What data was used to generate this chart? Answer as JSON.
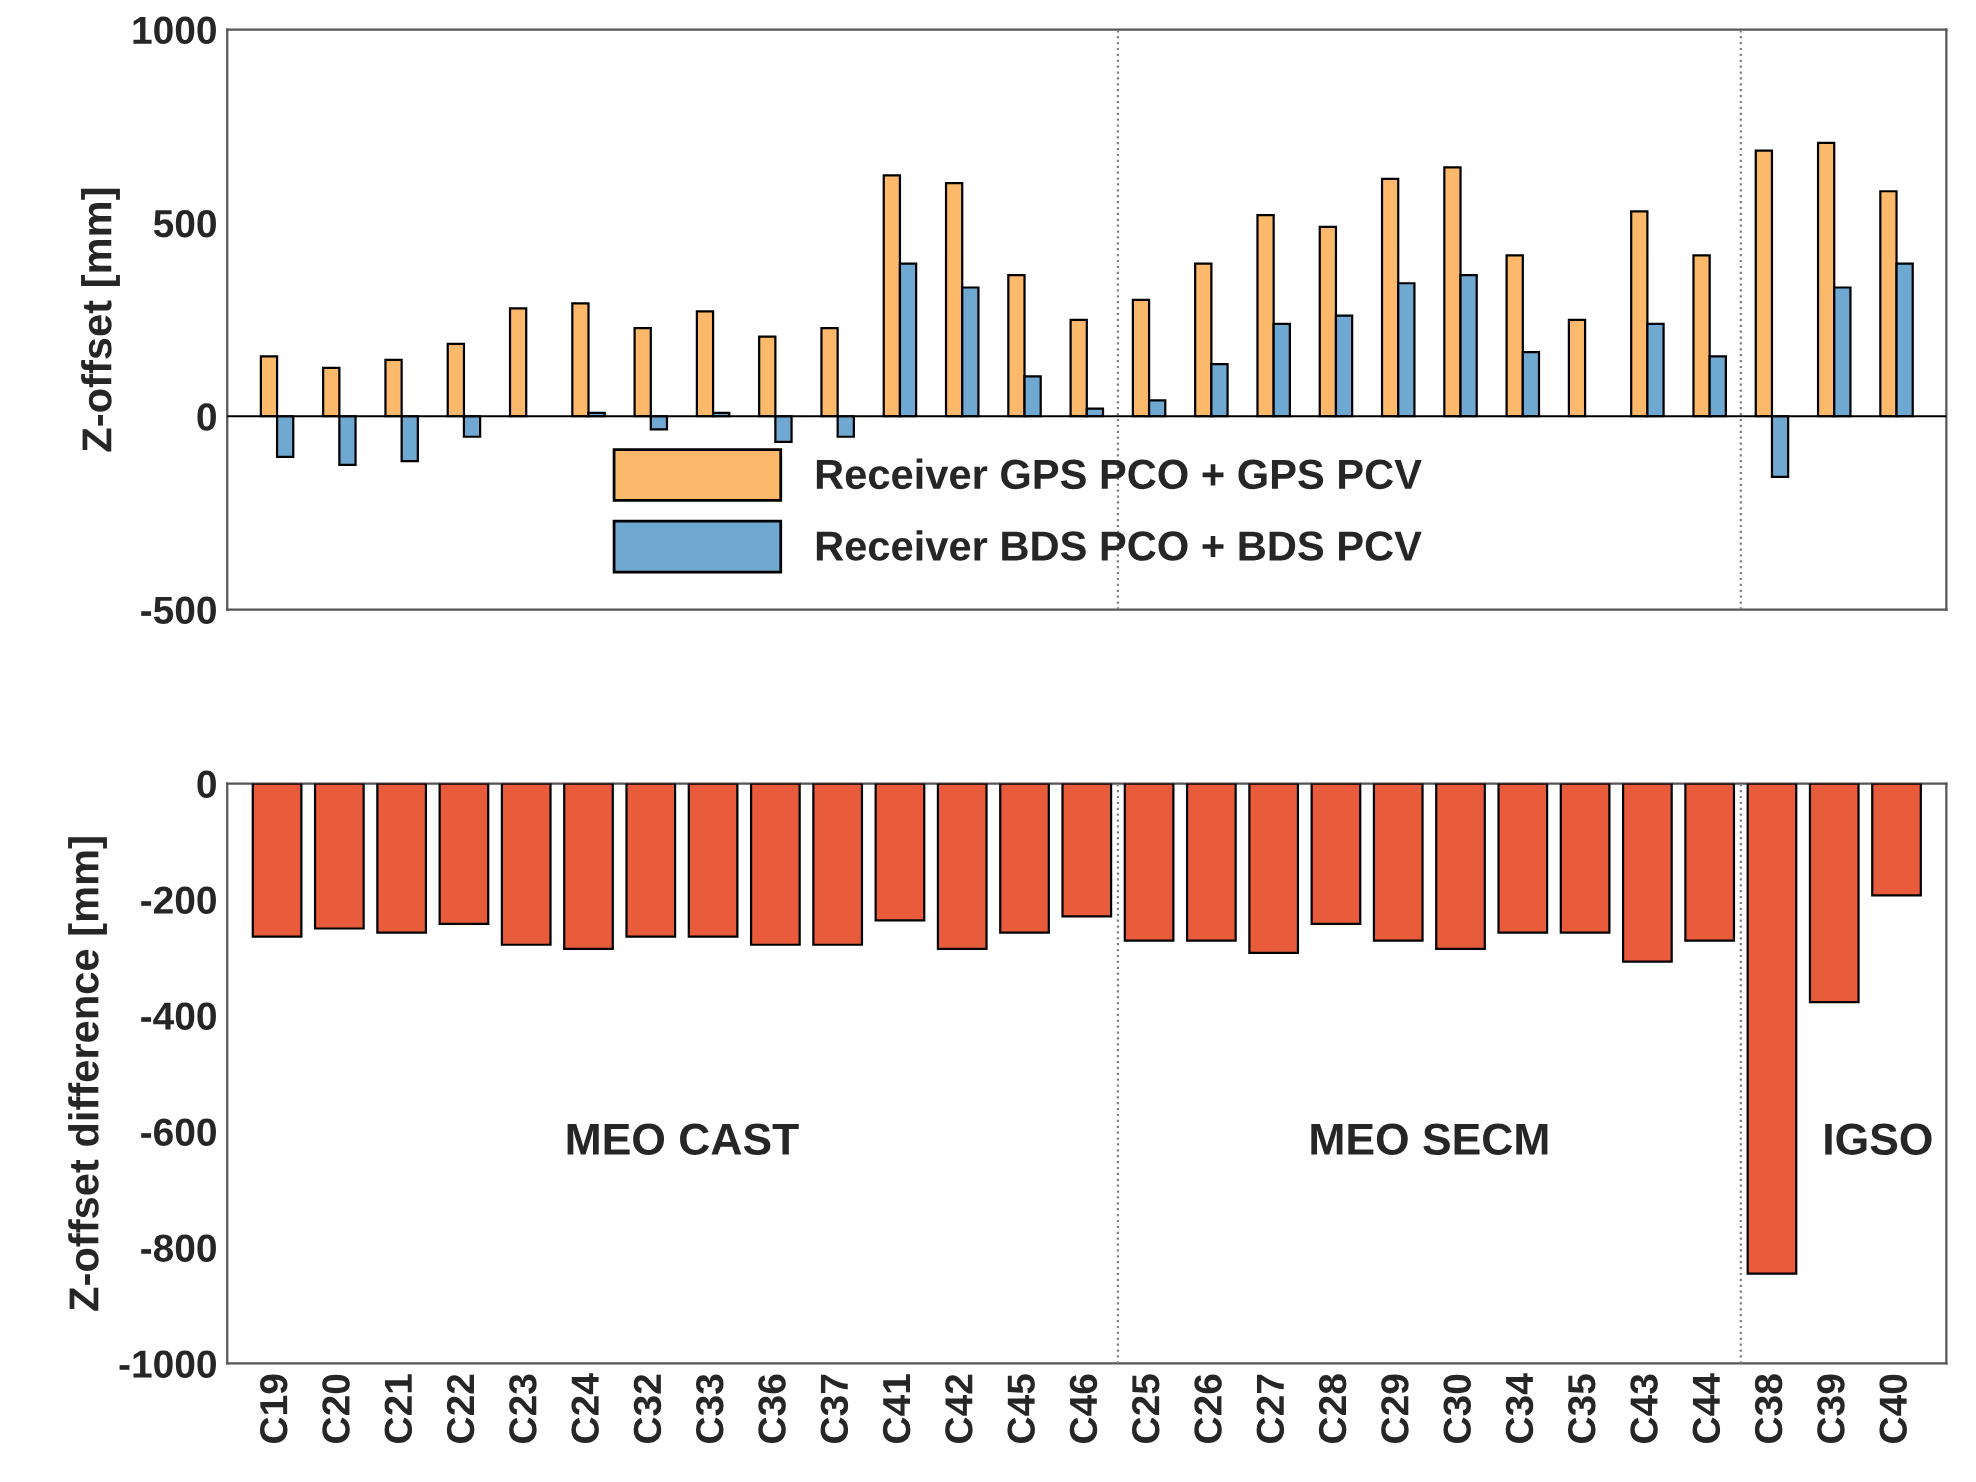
{
  "chart_data": [
    {
      "type": "bar",
      "ylabel": "Z-offset [mm]",
      "categories": [
        null,
        null,
        null,
        null,
        null,
        null,
        null,
        null,
        null,
        null,
        null,
        null,
        null,
        null,
        null,
        null,
        null,
        null,
        null,
        null,
        null,
        null,
        null,
        null,
        null,
        null,
        null
      ],
      "series": [
        {
          "name": "Receiver GPS PCO + GPS PCV",
          "color": "#fdb96b",
          "values": [
            155,
            125,
            146,
            187,
            279,
            292,
            228,
            271,
            206,
            228,
            623,
            603,
            365,
            249,
            301,
            395,
            520,
            490,
            614,
            644,
            416,
            249,
            530,
            416,
            687,
            707,
            582
          ]
        },
        {
          "name": "Receiver BDS PCO + BDS PCV",
          "color": "#6fa8d0",
          "values": [
            -105,
            -126,
            -116,
            -53,
            null,
            9,
            -34,
            9,
            -66,
            -53,
            395,
            333,
            103,
            20,
            41,
            135,
            239,
            260,
            344,
            365,
            166,
            null,
            239,
            155,
            -157,
            333,
            395
          ]
        }
      ],
      "ylim": [
        -500,
        1000
      ],
      "yticks": [
        -500,
        0,
        500,
        1000
      ],
      "tick_labels": "y",
      "legend": "bottom",
      "ref_lines": [
        {
          "axis": "y",
          "value": 0,
          "color": "#000000",
          "line_style": "solid"
        }
      ]
    },
    {
      "type": "bar",
      "ylabel": "Z-offset difference [mm]",
      "categories": [
        "C19",
        "C20",
        "C21",
        "C22",
        "C23",
        "C24",
        "C32",
        "C33",
        "C36",
        "C37",
        "C41",
        "C42",
        "C45",
        "C46",
        "C25",
        "C26",
        "C27",
        "C28",
        "C29",
        "C30",
        "C34",
        "C35",
        "C43",
        "C44",
        "C38",
        "C39",
        "C40"
      ],
      "series": [
        {
          "color": "#e85c3c",
          "values": [
            -264,
            -250,
            -257,
            -242,
            -278,
            -285,
            -264,
            -264,
            -278,
            -278,
            -236,
            -285,
            -257,
            -229,
            -271,
            -271,
            -292,
            -242,
            -271,
            -285,
            -257,
            -257,
            -307,
            -271,
            -845,
            -377,
            -193
          ]
        }
      ],
      "ylim": [
        -1000,
        0
      ],
      "yticks": [
        -1000,
        -800,
        -600,
        -400,
        -200,
        0
      ],
      "annotations": [
        "MEO CAST",
        "MEO SECM",
        "IGSO"
      ]
    }
  ]
}
